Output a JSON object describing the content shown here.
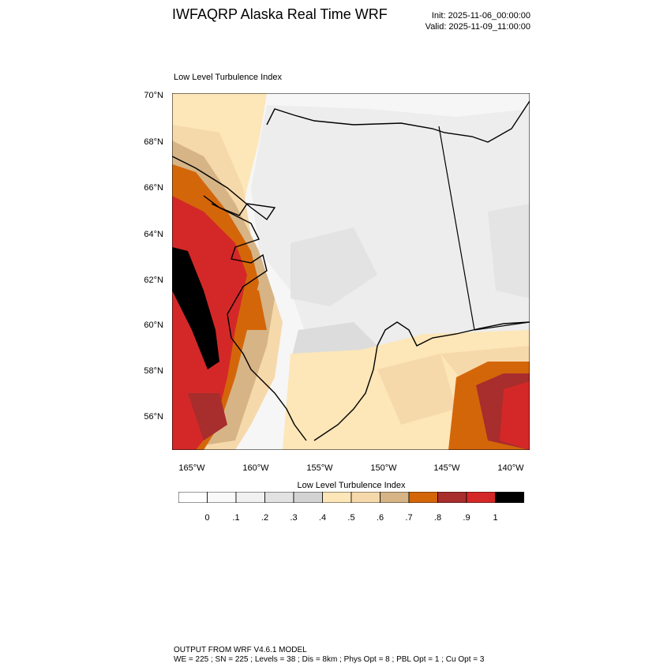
{
  "header": {
    "title": "IWFAQRP Alaska Real Time WRF",
    "init": "Init: 2025-11-06_00:00:00",
    "valid": "Valid: 2025-11-09_11:00:00"
  },
  "panel": {
    "title": "Low Level Turbulence Index"
  },
  "axes": {
    "lat_labels": [
      "70°N",
      "68°N",
      "66°N",
      "64°N",
      "62°N",
      "60°N",
      "58°N",
      "56°N"
    ],
    "lon_labels": [
      "165°W",
      "160°W",
      "155°W",
      "150°W",
      "145°W",
      "140°W"
    ]
  },
  "colorbar": {
    "title": "Low Level Turbulence Index",
    "colors": [
      "#ffffff",
      "#f9f9f9",
      "#f1f1f1",
      "#e2e2e2",
      "#d3d3d3",
      "#fde6b8",
      "#f6d9ab",
      "#d6b486",
      "#d4660a",
      "#a82d2d",
      "#d42828",
      "#000000"
    ],
    "labels": [
      "0",
      ".1",
      ".2",
      ".3",
      ".4",
      ".5",
      ".6",
      ".7",
      ".8",
      ".9",
      "1"
    ]
  },
  "footer": {
    "line1": "OUTPUT FROM WRF V4.6.1 MODEL",
    "line2": "WE = 225 ; SN = 225 ; Levels = 38 ; Dis = 8km ; Phys Opt = 8 ; PBL Opt = 1 ; Cu Opt = 3"
  }
}
